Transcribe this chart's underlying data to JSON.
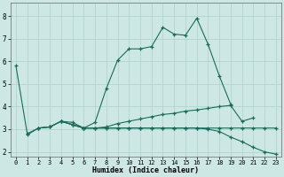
{
  "xlabel": "Humidex (Indice chaleur)",
  "bg_color": "#cde8e4",
  "grid_color": "#b0d0cc",
  "line_color": "#1a6b5a",
  "xlim": [
    -0.5,
    23.5
  ],
  "ylim": [
    1.8,
    8.6
  ],
  "yticks": [
    2,
    3,
    4,
    5,
    6,
    7,
    8
  ],
  "xticks": [
    0,
    1,
    2,
    3,
    4,
    5,
    6,
    7,
    8,
    9,
    10,
    11,
    12,
    13,
    14,
    15,
    16,
    17,
    18,
    19,
    20,
    21,
    22,
    23
  ],
  "line1_x": [
    0,
    1,
    2,
    3,
    4,
    5,
    6,
    7,
    8,
    9,
    10,
    11,
    12,
    13,
    14,
    15,
    16,
    17,
    18,
    19
  ],
  "line1_y": [
    5.8,
    2.8,
    3.05,
    3.1,
    3.35,
    3.3,
    3.05,
    3.3,
    4.8,
    6.05,
    6.55,
    6.55,
    6.65,
    7.5,
    7.2,
    7.15,
    7.9,
    6.75,
    5.35,
    4.1
  ],
  "line2_x": [
    2,
    3,
    4,
    5,
    6,
    7,
    8,
    9,
    10,
    11,
    12,
    13,
    14,
    15,
    16,
    17,
    18,
    19,
    20,
    21
  ],
  "line2_y": [
    3.05,
    3.1,
    3.35,
    3.2,
    3.05,
    3.05,
    3.1,
    3.25,
    3.35,
    3.45,
    3.55,
    3.65,
    3.7,
    3.8,
    3.85,
    3.92,
    4.0,
    4.05,
    3.35,
    3.5
  ],
  "line3_x": [
    1,
    2,
    3,
    4,
    5,
    6,
    7,
    8,
    9,
    10,
    11,
    12,
    13,
    14,
    15,
    16,
    17,
    18,
    19,
    20,
    21,
    22,
    23
  ],
  "line3_y": [
    2.75,
    3.05,
    3.1,
    3.35,
    3.2,
    3.05,
    3.05,
    3.05,
    3.05,
    3.05,
    3.05,
    3.05,
    3.05,
    3.05,
    3.05,
    3.05,
    3.0,
    2.9,
    2.65,
    2.45,
    2.2,
    2.0,
    1.9
  ],
  "line4_x": [
    4,
    5,
    6,
    7,
    8,
    9,
    10,
    11,
    12,
    13,
    14,
    15,
    16,
    17,
    18,
    19,
    20,
    21,
    22,
    23
  ],
  "line4_y": [
    3.35,
    3.2,
    3.05,
    3.05,
    3.05,
    3.05,
    3.05,
    3.05,
    3.05,
    3.05,
    3.05,
    3.05,
    3.05,
    3.05,
    3.05,
    3.05,
    3.05,
    3.05,
    3.05,
    3.05
  ]
}
